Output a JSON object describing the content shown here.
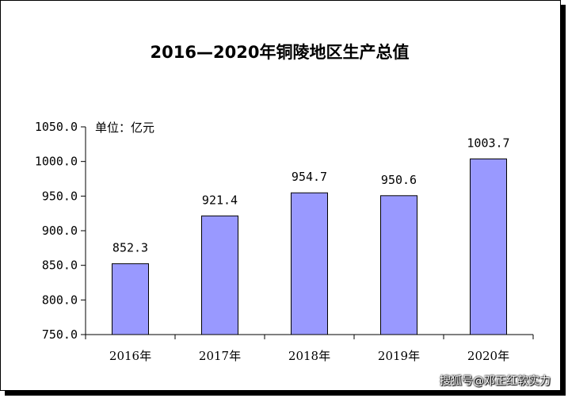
{
  "unit_label": "单位：亿元",
  "watermark": "搜狐号@邓正红软实力",
  "colors": {
    "bar_fill": "#9999ff",
    "bar_stroke": "#000000",
    "axis": "#000000"
  },
  "chart_data": {
    "type": "bar",
    "title": "2016—2020年铜陵地区生产总值",
    "xlabel": "",
    "ylabel": "",
    "categories": [
      "2016年",
      "2017年",
      "2018年",
      "2019年",
      "2020年"
    ],
    "values": [
      852.3,
      921.4,
      954.7,
      950.6,
      1003.7
    ],
    "value_labels": [
      "852.3",
      "921.4",
      "954.7",
      "950.6",
      "1003.7"
    ],
    "ylim": [
      750,
      1050
    ],
    "yticks": [
      750,
      800,
      850,
      900,
      950,
      1000,
      1050
    ],
    "ytick_labels": [
      "750.0",
      "800.0",
      "850.0",
      "900.0",
      "950.0",
      "1000.0",
      "1050.0"
    ],
    "grid": false,
    "legend": "none"
  }
}
